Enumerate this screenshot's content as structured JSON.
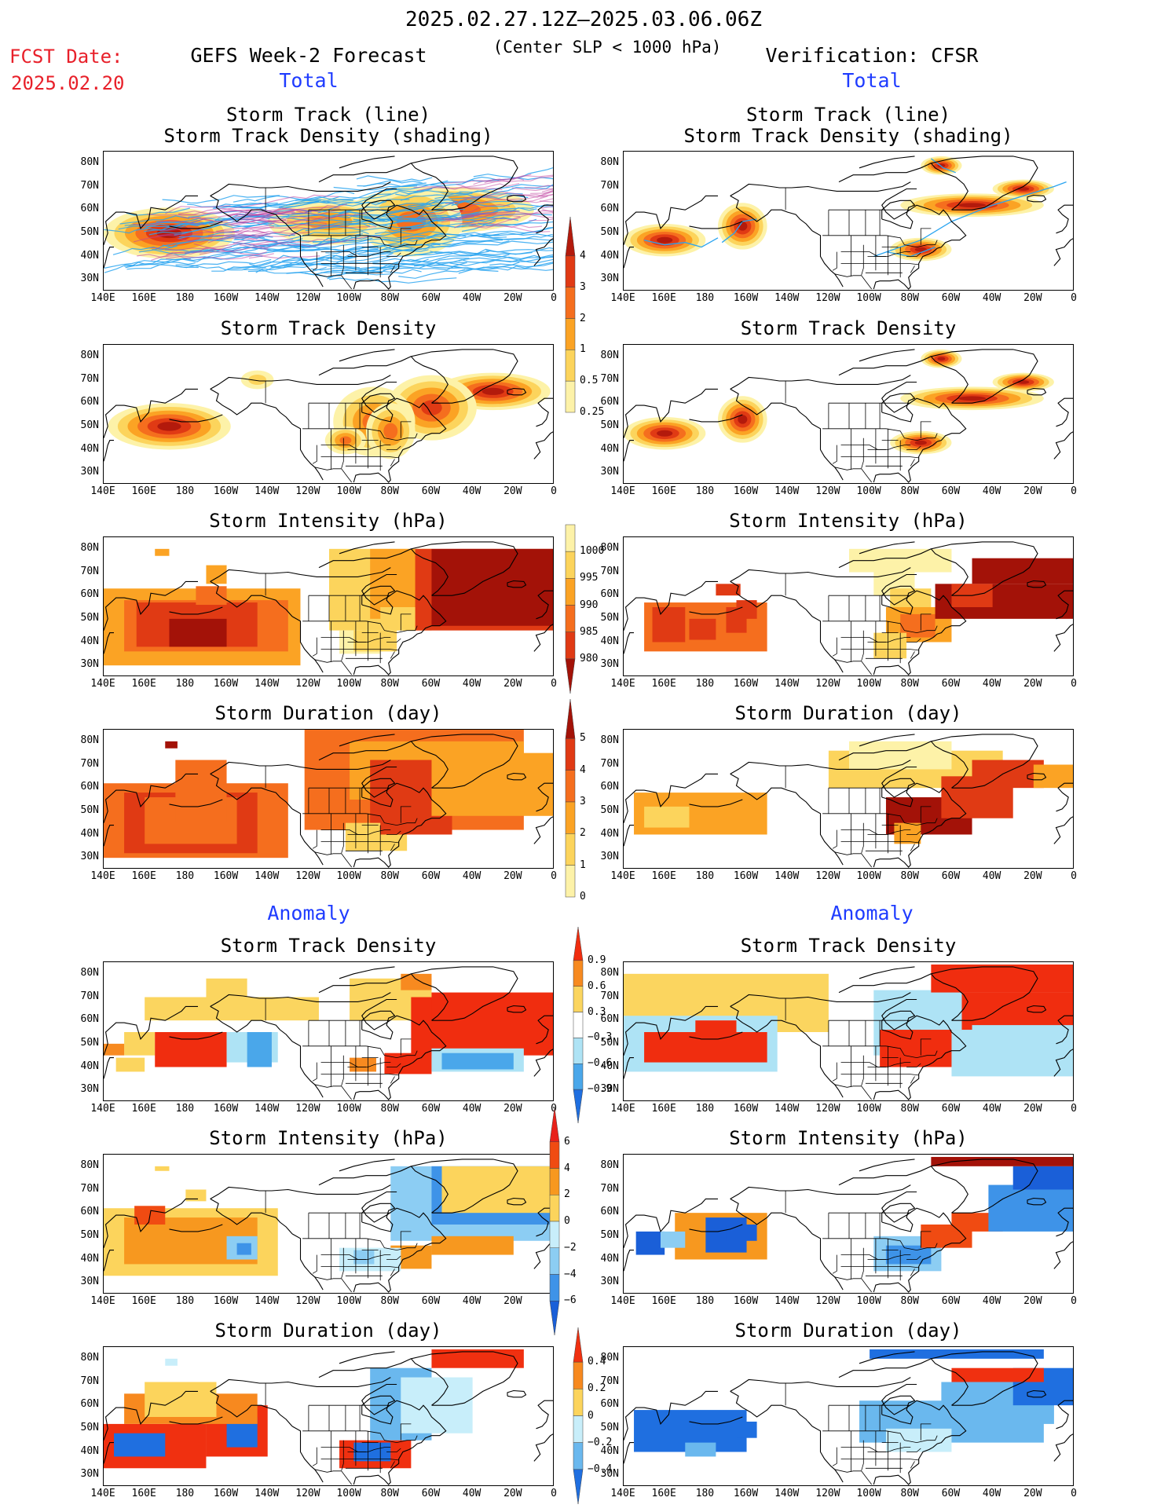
{
  "header": {
    "period": "2025.02.27.12Z–2025.03.06.06Z",
    "criterion": "(Center SLP < 1000 hPa)",
    "fcst_label": "FCST Date:",
    "fcst_date": "2025.02.20",
    "left_title": "GEFS Week-2 Forecast",
    "right_title": "Verification: CFSR",
    "total_label": "Total",
    "anomaly_label": "Anomaly"
  },
  "panel_titles": {
    "track_line": "Storm Track (line)",
    "track_shading": "Storm Track Density (shading)",
    "density": "Storm Track Density",
    "intensity": "Storm Intensity (hPa)",
    "duration": "Storm Duration (day)"
  },
  "axes": {
    "lat_labels": [
      "80N",
      "70N",
      "60N",
      "50N",
      "40N",
      "30N"
    ],
    "lon_labels": [
      "140E",
      "160E",
      "180",
      "160W",
      "140W",
      "120W",
      "100W",
      "80W",
      "60W",
      "40W",
      "20W",
      "0"
    ]
  },
  "colorbars": {
    "density_total": {
      "labels": [
        "4",
        "3",
        "2",
        "1",
        "0.5",
        "0.25"
      ],
      "colors": [
        "#b31a0c",
        "#e03a14",
        "#f56e1e",
        "#fba324",
        "#fcd45c",
        "#fdf2a8"
      ]
    },
    "intensity_total": {
      "labels": [
        "1000",
        "995",
        "990",
        "985",
        "980"
      ],
      "colors": [
        "#fdf2a8",
        "#fcd45c",
        "#fba324",
        "#f56e1e",
        "#e03a14",
        "#a31208"
      ]
    },
    "duration_total": {
      "labels": [
        "5",
        "4",
        "3",
        "2",
        "1",
        "0"
      ],
      "colors": [
        "#a31208",
        "#e03a14",
        "#f56e1e",
        "#fba324",
        "#fcd45c",
        "#fdf2a8"
      ]
    },
    "density_anom": {
      "labels": [
        "0.9",
        "0.6",
        "0.3",
        "−0.3",
        "−0.6",
        "−0.9"
      ],
      "colors": [
        "#f02d0f",
        "#f78a20",
        "#fbd55f",
        "#ffffff",
        "#aee3f5",
        "#4aa7ea",
        "#1f6fe0"
      ]
    },
    "intensity_anom": {
      "labels": [
        "6",
        "4",
        "2",
        "0",
        "−2",
        "−4",
        "−6"
      ],
      "colors": [
        "#e8211a",
        "#f04b12",
        "#f7981f",
        "#fcd45c",
        "#c8eefa",
        "#8ccdf3",
        "#3e93e8",
        "#1a5fd8"
      ]
    },
    "duration_anom": {
      "labels": [
        "0.4",
        "0.2",
        "0",
        "−0.2",
        "−0.4"
      ],
      "colors": [
        "#f03010",
        "#f7891f",
        "#fcd45c",
        "#c8eefa",
        "#6ab8ee",
        "#1f6fe0"
      ]
    }
  },
  "colors": {
    "track_line": "#2aa4f0",
    "land_outline": "#000000",
    "header_red": "#e8202a",
    "header_blue": "#1f3cff"
  }
}
